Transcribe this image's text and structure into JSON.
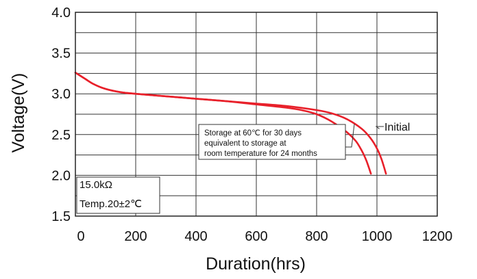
{
  "chart_data": {
    "type": "line",
    "xlabel": "Duration(hrs)",
    "ylabel": "Voltage(V)",
    "xlim": [
      0,
      1200
    ],
    "ylim": [
      1.5,
      4.0
    ],
    "x_ticks": [
      "0",
      "200",
      "400",
      "600",
      "800",
      "1000",
      "1200"
    ],
    "y_ticks": [
      "1.5",
      "2.0",
      "2.5",
      "3.0",
      "3.5",
      "4.0"
    ],
    "x_tick_values": [
      0,
      200,
      400,
      600,
      800,
      1000,
      1200
    ],
    "y_tick_values": [
      1.5,
      2.0,
      2.5,
      3.0,
      3.5,
      4.0
    ],
    "grid": true,
    "line_color": "#e8202a",
    "series": [
      {
        "name": "Initial",
        "x": [
          0,
          30,
          60,
          100,
          150,
          200,
          300,
          400,
          500,
          600,
          700,
          800,
          850,
          900,
          950,
          980,
          1000,
          1015,
          1030
        ],
        "y": [
          3.26,
          3.19,
          3.12,
          3.06,
          3.02,
          3.0,
          2.97,
          2.94,
          2.91,
          2.88,
          2.85,
          2.8,
          2.76,
          2.69,
          2.57,
          2.45,
          2.33,
          2.2,
          2.02
        ]
      },
      {
        "name": "Storage at 60℃ for 30 days equivalent to storage at room temperature for 24 months",
        "x": [
          0,
          30,
          60,
          100,
          150,
          200,
          300,
          400,
          500,
          600,
          700,
          750,
          800,
          850,
          900,
          930,
          950,
          965,
          980
        ],
        "y": [
          3.26,
          3.19,
          3.12,
          3.06,
          3.02,
          3.0,
          2.97,
          2.94,
          2.91,
          2.87,
          2.83,
          2.8,
          2.75,
          2.66,
          2.53,
          2.42,
          2.3,
          2.18,
          2.02
        ]
      }
    ],
    "annotations": {
      "initial_label": "Initial",
      "storage_note": [
        "Storage at 60℃ for 30 days",
        "equivalent to storage at",
        "room temperature for 24 months"
      ],
      "conditions": [
        "15.0kΩ",
        "Temp.20±2℃"
      ]
    }
  }
}
